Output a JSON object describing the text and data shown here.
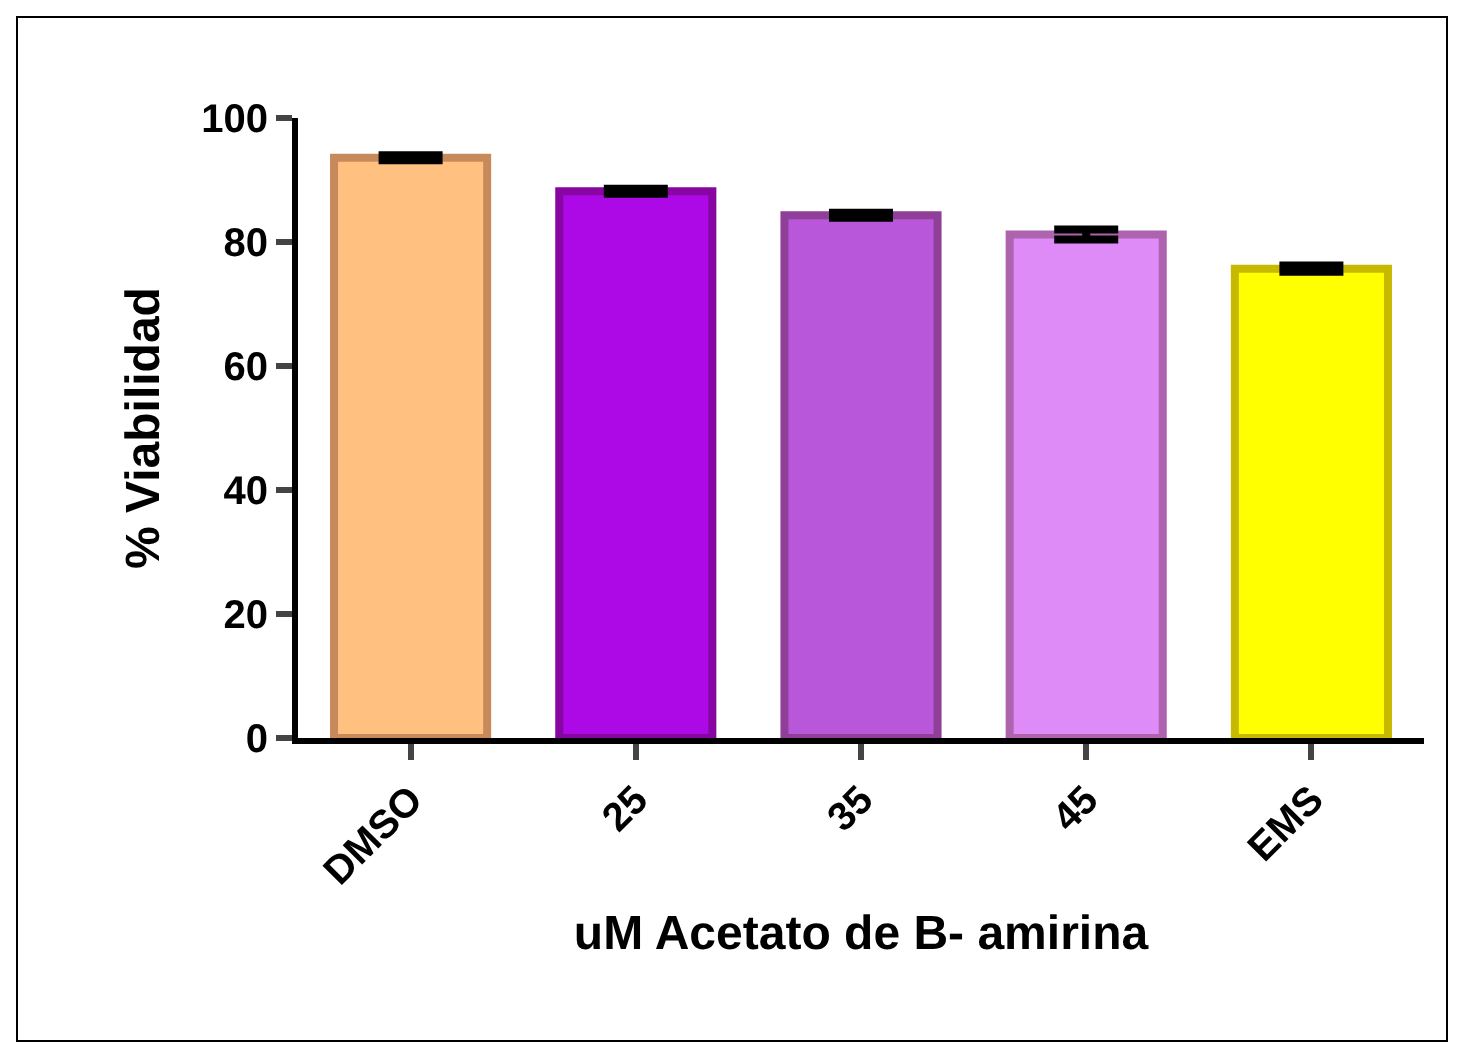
{
  "chart_data": {
    "type": "bar",
    "xlabel": "uM Acetato de B- amirina",
    "ylabel": "% Viabilidad",
    "categories": [
      "DMSO",
      "25",
      "35",
      "45",
      "EMS"
    ],
    "values": [
      93.6,
      88.2,
      84.3,
      81.2,
      75.7
    ],
    "errors": [
      0.4,
      0.4,
      0.4,
      0.8,
      0.5
    ],
    "colors": [
      "#ffc080",
      "#ad09e6",
      "#b857d9",
      "#de8af7",
      "#ffff00"
    ],
    "ylim": [
      0,
      100
    ],
    "yticks": [
      0,
      20,
      40,
      60,
      80,
      100
    ],
    "grid": false,
    "legend": false
  }
}
